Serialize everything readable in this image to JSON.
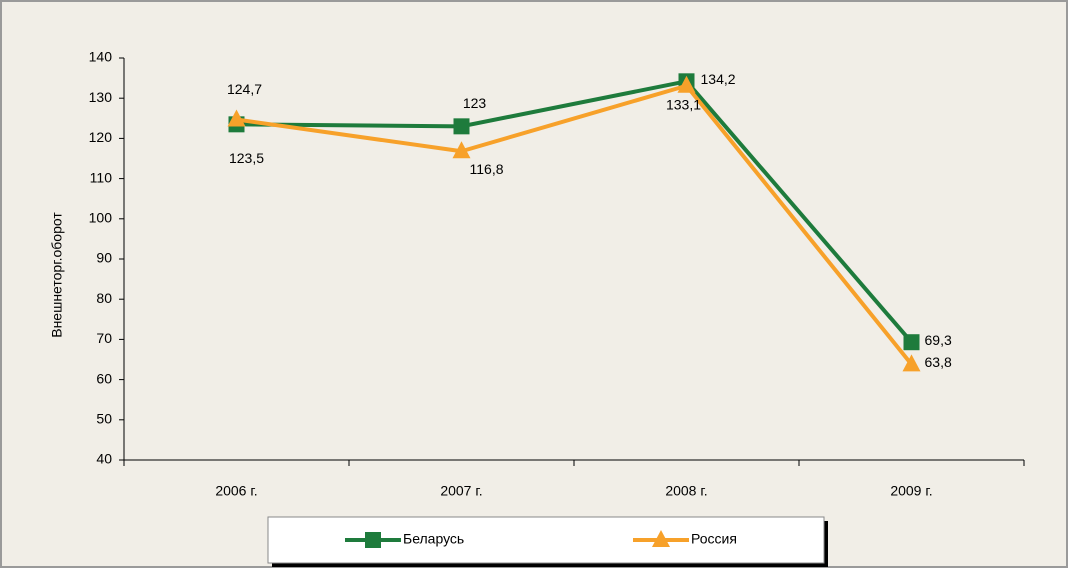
{
  "chart_data": {
    "type": "line",
    "y_axis_label": "Внешнеторг.оборот",
    "categories": [
      "2006 г.",
      "2007 г.",
      "2008 г.",
      "2009 г."
    ],
    "series": [
      {
        "name": "Беларусь",
        "color": "#1e7b3c",
        "marker": "square",
        "values": [
          123.5,
          123,
          134.2,
          69.3
        ],
        "value_labels": [
          "123,5",
          "123",
          "134,2",
          "69,3"
        ]
      },
      {
        "name": "Россия",
        "color": "#f7a12a",
        "marker": "triangle",
        "values": [
          124.7,
          116.8,
          133.1,
          63.8
        ],
        "value_labels": [
          "124,7",
          "116,8",
          "133,1",
          "63,8"
        ]
      }
    ],
    "ylim": [
      40,
      140
    ],
    "yticks": [
      40,
      50,
      60,
      70,
      80,
      90,
      100,
      110,
      120,
      130,
      140
    ],
    "grid": false,
    "legend": "bottom"
  }
}
